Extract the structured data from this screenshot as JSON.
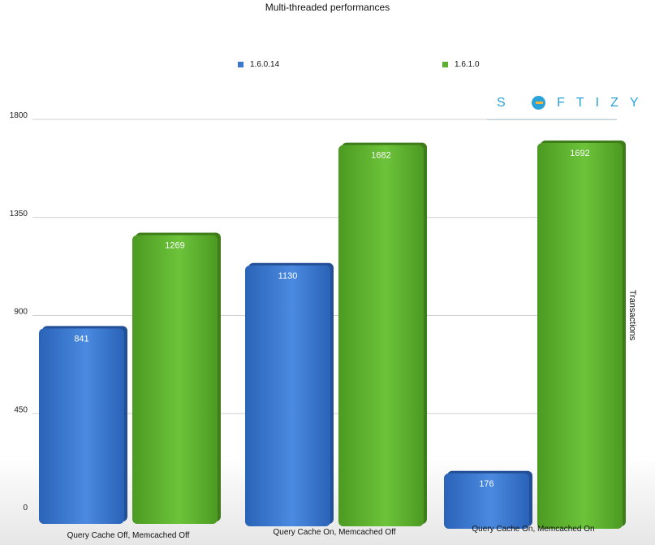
{
  "chart_data": {
    "type": "bar",
    "title": "Multi-threaded performances",
    "ylabel": "Transactions",
    "xlabel": "",
    "ylim": [
      0,
      1800
    ],
    "yticks": [
      0,
      450,
      900,
      1350,
      1800
    ],
    "grid": true,
    "legend_position": "top",
    "categories": [
      "Query Cache Off, Memcached Off",
      "Query Cache On, Memcached Off",
      "Query Cache On, Memcached On"
    ],
    "series": [
      {
        "name": "1.6.0.14",
        "color": "#3a78d0",
        "values": [
          841,
          1130,
          176
        ]
      },
      {
        "name": "1.6.1.0",
        "color": "#5bb12e",
        "values": [
          1269,
          1682,
          1692
        ]
      }
    ]
  },
  "logo": {
    "text_before": "S",
    "text_after": "FTIZY"
  }
}
